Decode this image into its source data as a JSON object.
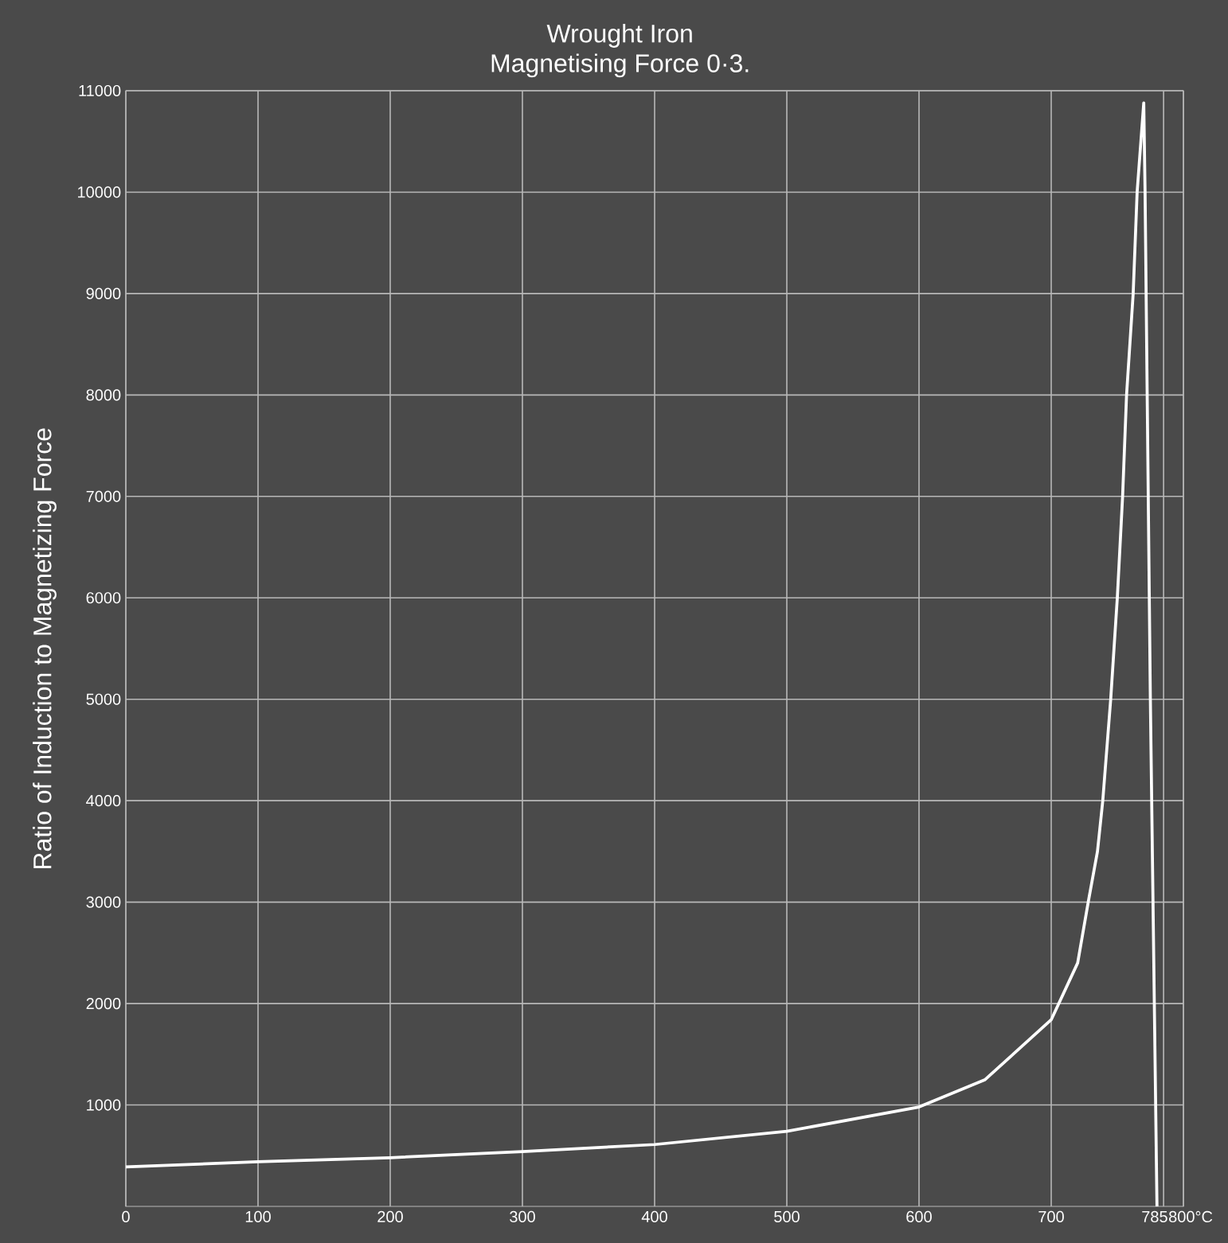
{
  "chart_data": {
    "type": "line",
    "title": "Wrought Iron",
    "subtitle": "Magnetising Force 0·3.",
    "ylabel": "Ratio of Induction to Magnetizing Force",
    "x": [
      0,
      100,
      200,
      300,
      400,
      500,
      600,
      650,
      700,
      720,
      728,
      735,
      739,
      745,
      750,
      754,
      757,
      762,
      765,
      770,
      771,
      775,
      778,
      780
    ],
    "series": [
      {
        "color": "#ffffff",
        "values": [
          390,
          440,
          480,
          540,
          610,
          740,
          980,
          1250,
          1840,
          2400,
          3000,
          3500,
          4000,
          5000,
          6000,
          7000,
          8000,
          9000,
          10000,
          10880,
          10000,
          5000,
          2000,
          0
        ]
      }
    ],
    "xlim": [
      0,
      800
    ],
    "ylim": [
      0,
      11000
    ],
    "xticks": [
      0,
      100,
      200,
      300,
      400,
      500,
      600,
      700,
      785,
      {
        "value": 800,
        "label": "800°C"
      }
    ],
    "yticks": [
      1000,
      2000,
      3000,
      4000,
      5000,
      6000,
      7000,
      8000,
      9000,
      10000,
      11000
    ],
    "grid": true,
    "marker": "none",
    "line_style": "solid"
  }
}
